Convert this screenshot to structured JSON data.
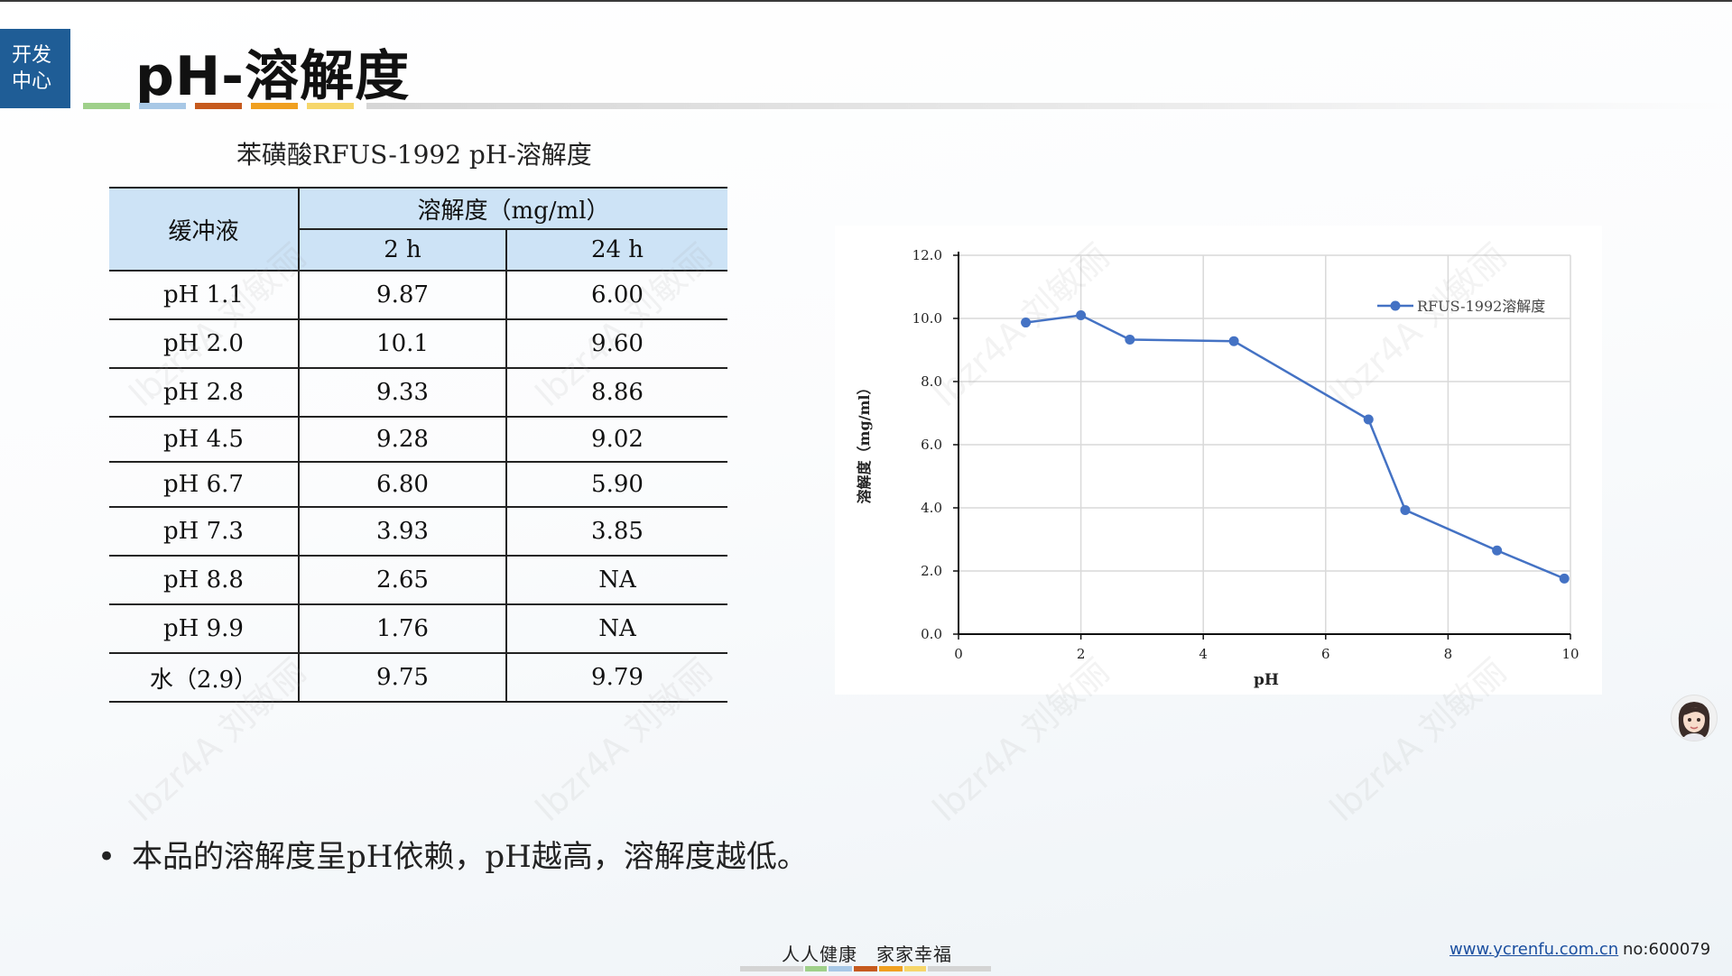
{
  "badge": {
    "line1": "开发",
    "line2": "中心"
  },
  "page_title": "pH-溶解度",
  "table": {
    "title": "苯磺酸RFUS-1992 pH-溶解度",
    "header": {
      "buffer": "缓冲液",
      "solubility": "溶解度（mg/ml）",
      "col_2h": "2 h",
      "col_24h": "24 h"
    },
    "rows": [
      {
        "buffer": "pH 1.1",
        "h2": "9.87",
        "h24": "6.00"
      },
      {
        "buffer": "pH 2.0",
        "h2": "10.1",
        "h24": "9.60"
      },
      {
        "buffer": "pH 2.8",
        "h2": "9.33",
        "h24": "8.86"
      },
      {
        "buffer": "pH 4.5",
        "h2": "9.28",
        "h24": "9.02"
      },
      {
        "buffer": "pH 6.7",
        "h2": "6.80",
        "h24": "5.90"
      },
      {
        "buffer": "pH 7.3",
        "h2": "3.93",
        "h24": "3.85"
      },
      {
        "buffer": "pH 8.8",
        "h2": "2.65",
        "h24": "NA"
      },
      {
        "buffer": "pH 9.9",
        "h2": "1.76",
        "h24": "NA"
      },
      {
        "buffer": "水（2.9）",
        "h2": "9.75",
        "h24": "9.79"
      }
    ]
  },
  "chart_data": {
    "type": "line",
    "title": "",
    "xlabel": "pH",
    "ylabel": "溶解度（mg/ml）",
    "xlim": [
      0,
      10
    ],
    "ylim": [
      0,
      12
    ],
    "x_ticks": [
      "0",
      "2",
      "4",
      "6",
      "8",
      "10"
    ],
    "y_ticks": [
      "0.0",
      "2.0",
      "4.0",
      "6.0",
      "8.0",
      "10.0",
      "12.0"
    ],
    "grid": true,
    "legend_position": "top-right",
    "series": [
      {
        "name": "RFUS-1992溶解度",
        "color": "#4472c4",
        "points": [
          {
            "x": 1.1,
            "y": 9.87
          },
          {
            "x": 2.0,
            "y": 10.1
          },
          {
            "x": 2.8,
            "y": 9.33
          },
          {
            "x": 4.5,
            "y": 9.28
          },
          {
            "x": 6.7,
            "y": 6.8
          },
          {
            "x": 7.3,
            "y": 3.93
          },
          {
            "x": 8.8,
            "y": 2.65
          },
          {
            "x": 9.9,
            "y": 1.76
          }
        ]
      }
    ]
  },
  "bullet_text": "本品的溶解度呈pH依赖，pH越高，溶解度越低。",
  "footer": {
    "slogan": "人人健康　家家幸福",
    "link": "www.ycrenfu.com.cn",
    "no": "no:600079"
  },
  "watermark": "lbzr4A 刘敏丽",
  "colors": {
    "badge": "#1f5d96",
    "table_header": "#cde3f6",
    "series": "#4472c4"
  },
  "accent_bar_colors": [
    "#9fd08a",
    "#a8c8e6",
    "#c65a1e",
    "#f0a020",
    "#f6d66a"
  ],
  "footer_bar_colors": [
    "#d4d4d4",
    "#9fd08a",
    "#a8c8e6",
    "#c65a1e",
    "#f0a020",
    "#f6d66a",
    "#d4d4d4"
  ]
}
